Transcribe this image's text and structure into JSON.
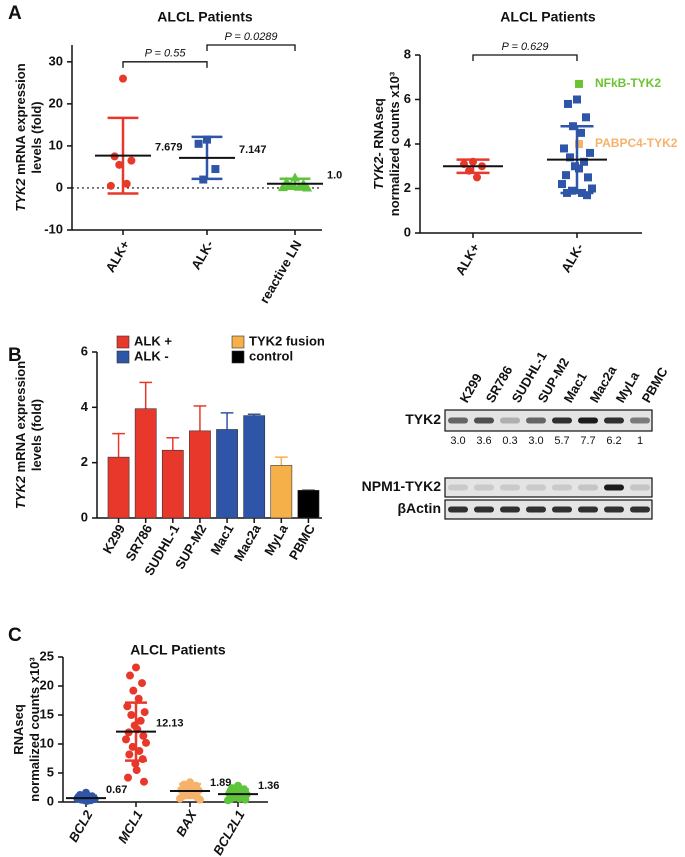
{
  "panel_labels": [
    "A",
    "B",
    "C"
  ],
  "chart_data": [
    {
      "type": "dot",
      "title": "ALCL Patients",
      "ylabel": [
        [
          "TYK2",
          " mRNA expression"
        ],
        [
          "levels (fold)"
        ]
      ],
      "ylabel_italic": true,
      "categories": [
        "ALK+",
        "ALK-",
        "reactive LN"
      ],
      "ylim": [
        -10,
        34
      ],
      "yticks": [
        -10,
        0,
        10,
        20,
        30
      ],
      "zero_line": true,
      "groups": [
        {
          "color": "#e8382b",
          "marker": "circle",
          "points": [
            26,
            7.5,
            6.5,
            5.5,
            1,
            0.5
          ],
          "mean": 7.679,
          "sd": 9
        },
        {
          "color": "#2f55a8",
          "marker": "square",
          "points": [
            11.5,
            10.5,
            4.5,
            2
          ],
          "mean": 7.147,
          "sd": 5
        },
        {
          "color": "#5ec43a",
          "marker": "triangle",
          "points": [
            2.5,
            1.5,
            1,
            0.5,
            0.3,
            0.2,
            0.1,
            0.5
          ],
          "mean": 1.0,
          "mean_label": "1.0",
          "sd": 1.2
        }
      ],
      "annotations": [
        "P = 0.55",
        "P = 0.0289"
      ]
    },
    {
      "type": "dot",
      "title": "ALCL Patients",
      "ylabel": [
        [
          "TYK2",
          "- RNAseq"
        ],
        [
          "normalized counts x10³"
        ]
      ],
      "ylabel_italic": true,
      "categories": [
        "ALK+",
        "ALK-"
      ],
      "ylim": [
        0,
        8
      ],
      "yticks": [
        0,
        2,
        4,
        6,
        8
      ],
      "zero_line": false,
      "groups": [
        {
          "color": "#e8382b",
          "marker": "circle",
          "points": [
            3.2,
            3.1,
            3.0,
            2.8,
            2.5
          ],
          "mean": 3.0,
          "sd": 0.3
        },
        {
          "color": "#2f55a8",
          "marker": "square",
          "points": [
            6.0,
            5.8,
            5.2,
            4.8,
            4.5,
            3.8,
            3.6,
            3.4,
            3.2,
            3.0,
            2.9,
            2.6,
            2.5,
            2.2,
            2.0,
            1.9,
            1.8,
            1.8,
            1.7
          ],
          "mean": 3.3,
          "sd": 1.5,
          "highlights": [
            {
              "name": "NFkB-TYK2",
              "color": "#6cc330",
              "value": 6.7
            },
            {
              "name": "PABPC4-TYK2",
              "color": "#f6b26b",
              "value": 4.0
            }
          ]
        }
      ],
      "annotations": [
        "P = 0.629"
      ]
    },
    {
      "type": "bar",
      "ylabel": [
        [
          "TYK2",
          " mRNA expression"
        ],
        [
          "levels (fold)"
        ]
      ],
      "ylabel_italic": true,
      "categories": [
        "K299",
        "SR786",
        "SUDHL-1",
        "SUP-M2",
        "Mac1",
        "Mac2a",
        "MyLa",
        "PBMC"
      ],
      "values": [
        2.2,
        3.95,
        2.45,
        3.15,
        3.2,
        3.7,
        1.9,
        1.0
      ],
      "errors": [
        0.85,
        0.95,
        0.45,
        0.9,
        0.6,
        0.05,
        0.3,
        0
      ],
      "colors": [
        "#e8382b",
        "#e8382b",
        "#e8382b",
        "#e8382b",
        "#2f55a8",
        "#2f55a8",
        "#f6b04a",
        "#000000"
      ],
      "ylim": [
        0,
        6
      ],
      "yticks": [
        0,
        2,
        4,
        6
      ],
      "legend": [
        {
          "name": "ALK +",
          "color": "#e8382b"
        },
        {
          "name": "TYK2 fusion",
          "color": "#f6b04a"
        },
        {
          "name": "ALK -",
          "color": "#2f55a8"
        },
        {
          "name": "control",
          "color": "#000000"
        }
      ]
    },
    {
      "type": "blot",
      "categories": [
        "K299",
        "SR786",
        "SUDHL-1",
        "SUP-M2",
        "Mac1",
        "Mac2a",
        "MyLa",
        "PBMC"
      ],
      "rows": [
        "TYK2",
        "NPM1-TYK2",
        "βActin"
      ],
      "values": [
        3.0,
        3.6,
        0.3,
        3.0,
        5.7,
        7.7,
        6.2,
        1
      ],
      "value_labels": [
        "3.0",
        "3.6",
        "0.3",
        "3.0",
        "5.7",
        "7.7",
        "6.2",
        "1"
      ]
    },
    {
      "type": "dot",
      "title": "ALCL Patients",
      "ylabel": [
        [
          "RNAseq"
        ],
        [
          "normalized counts x10³"
        ]
      ],
      "ylabel_italic": false,
      "categories": [
        "BCL2",
        "MCL1",
        "BAX",
        "BCL2L1"
      ],
      "category_italic": true,
      "ylim": [
        0,
        25
      ],
      "yticks": [
        0,
        5,
        10,
        15,
        20,
        25
      ],
      "zero_line": false,
      "groups": [
        {
          "color": "#2f55a8",
          "marker": "circle",
          "points": [
            1.6,
            1.2,
            1.0,
            0.8,
            0.7,
            0.6,
            0.5,
            0.4,
            0.3,
            0.3,
            0.2,
            0.9
          ],
          "mean": 0.67,
          "sd": 0.4
        },
        {
          "color": "#e8382b",
          "marker": "circle",
          "points": [
            23.2,
            21.8,
            20.5,
            19.2,
            17.8,
            16.5,
            15.5,
            15.0,
            14.0,
            13.2,
            12.5,
            12.0,
            11.4,
            10.8,
            10.2,
            9.5,
            8.8,
            8.2,
            7.4,
            6.6,
            5.5,
            4.2,
            3.5
          ],
          "mean": 12.13,
          "sd": 5
        },
        {
          "color": "#f6b26b",
          "marker": "circle",
          "points": [
            3.4,
            3.0,
            2.8,
            2.5,
            2.3,
            2.1,
            2.0,
            1.8,
            1.6,
            1.4,
            1.2,
            1.0,
            0.8,
            0.6,
            0.4
          ],
          "mean": 1.89,
          "sd": 1.2
        },
        {
          "color": "#5ec43a",
          "marker": "circle",
          "points": [
            2.8,
            2.4,
            2.2,
            2.0,
            1.7,
            1.5,
            1.3,
            1.1,
            1.0,
            0.8,
            0.6,
            0.5,
            0.4,
            0.3
          ],
          "mean": 1.36,
          "sd": 0.8
        }
      ]
    }
  ]
}
